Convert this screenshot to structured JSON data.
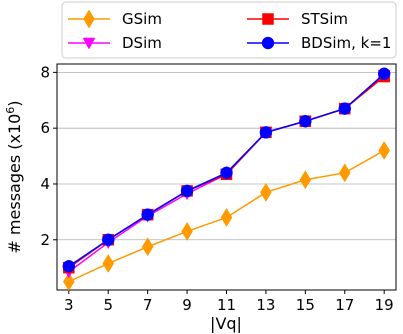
{
  "chart_data": {
    "type": "line",
    "xlabel": "|Vq|",
    "ylabel": "# messages (x10",
    "ylabel_exp": "6",
    "ylabel_close": ")",
    "x": [
      3,
      5,
      7,
      9,
      11,
      13,
      15,
      17,
      19
    ],
    "x_ticks": [
      "3",
      "5",
      "7",
      "9",
      "11",
      "13",
      "15",
      "17",
      "19"
    ],
    "y_ticks": [
      "2",
      "4",
      "6",
      "8"
    ],
    "xlim": [
      2.4,
      19.6
    ],
    "ylim": [
      0.2,
      8.3
    ],
    "grid": "horizontal",
    "legend_position": "top",
    "series": [
      {
        "name": "GSim",
        "color": "#ff9a00",
        "marker": "diamond",
        "values": [
          0.5,
          1.15,
          1.75,
          2.3,
          2.8,
          3.7,
          4.15,
          4.4,
          5.2
        ]
      },
      {
        "name": "DSim",
        "color": "#ff00ff",
        "marker": "triangle-down",
        "values": [
          0.85,
          1.9,
          2.85,
          3.65,
          4.35,
          5.85,
          6.25,
          6.7,
          7.9
        ]
      },
      {
        "name": "STSim",
        "color": "#ff0000",
        "marker": "square",
        "values": [
          1.0,
          2.0,
          2.9,
          3.75,
          4.35,
          5.85,
          6.25,
          6.7,
          7.85
        ]
      },
      {
        "name": "BDSim, k=1",
        "color": "#0000ff",
        "marker": "circle",
        "values": [
          1.05,
          2.0,
          2.9,
          3.75,
          4.4,
          5.85,
          6.25,
          6.7,
          7.95
        ]
      }
    ]
  }
}
